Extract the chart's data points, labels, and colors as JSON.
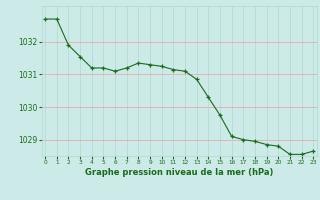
{
  "x": [
    0,
    1,
    2,
    3,
    4,
    5,
    6,
    7,
    8,
    9,
    10,
    11,
    12,
    13,
    14,
    15,
    16,
    17,
    18,
    19,
    20,
    21,
    22,
    23
  ],
  "y": [
    1032.7,
    1032.7,
    1031.9,
    1031.55,
    1031.2,
    1031.2,
    1031.1,
    1031.2,
    1031.35,
    1031.3,
    1031.25,
    1031.15,
    1031.1,
    1030.85,
    1030.3,
    1029.75,
    1029.1,
    1029.0,
    1028.95,
    1028.85,
    1028.8,
    1028.55,
    1028.55,
    1028.65
  ],
  "line_color": "#1a6b1a",
  "marker_color": "#1a6b1a",
  "bg_color": "#cceae7",
  "grid_color_v": "#b0d8cc",
  "grid_color_h": "#f0a0a0",
  "xlabel": "Graphe pression niveau de la mer (hPa)",
  "xlabel_color": "#1a6b1a",
  "tick_color": "#1a6b1a",
  "ylim_min": 1028.5,
  "ylim_max": 1033.1,
  "yticks": [
    1029,
    1030,
    1031,
    1032
  ],
  "xticks": [
    0,
    1,
    2,
    3,
    4,
    5,
    6,
    7,
    8,
    9,
    10,
    11,
    12,
    13,
    14,
    15,
    16,
    17,
    18,
    19,
    20,
    21,
    22,
    23
  ]
}
